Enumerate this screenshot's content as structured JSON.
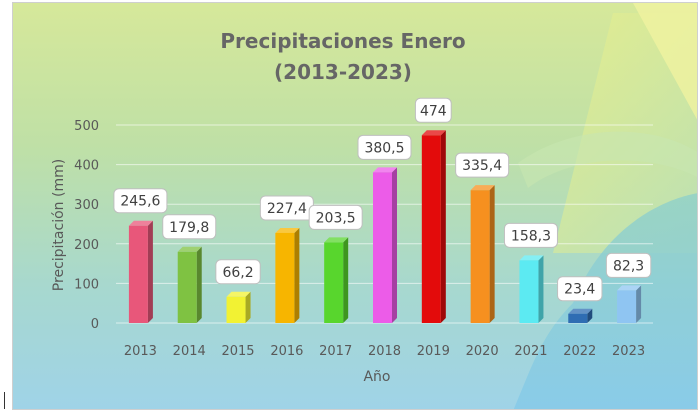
{
  "chart_data": {
    "type": "bar",
    "title": "Precipitaciones Enero",
    "subtitle": "(2013-2023)",
    "xlabel": "Año",
    "ylabel": "Precipitación (mm)",
    "categories": [
      "2013",
      "2014",
      "2015",
      "2016",
      "2017",
      "2018",
      "2019",
      "2020",
      "2021",
      "2022",
      "2023"
    ],
    "values": [
      245.6,
      179.8,
      66.2,
      227.4,
      203.5,
      380.5,
      474,
      335.4,
      158.3,
      23.4,
      82.3
    ],
    "value_labels": [
      "245,6",
      "179,8",
      "66,2",
      "227,4",
      "203,5",
      "380,5",
      "474",
      "335,4",
      "158,3",
      "23,4",
      "82,3"
    ],
    "colors": [
      "#e8577a",
      "#7fc242",
      "#f2f233",
      "#f7b500",
      "#58d62d",
      "#ec5ce8",
      "#e30b0b",
      "#f6901f",
      "#5ceaf2",
      "#2f6db3",
      "#8fc5f2"
    ],
    "yticks": [
      "0",
      "100",
      "200",
      "300",
      "400",
      "500"
    ],
    "ylim": [
      0,
      500
    ],
    "grid": true,
    "legend": "none"
  }
}
